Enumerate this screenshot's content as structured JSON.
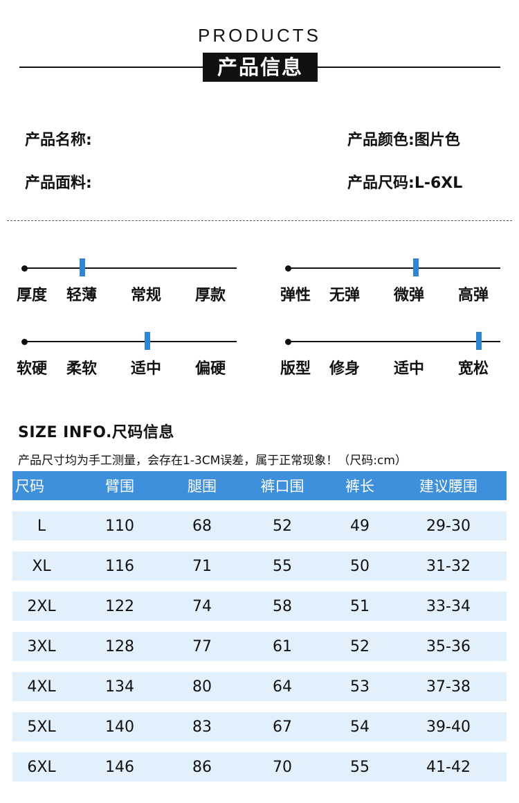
{
  "header": {
    "title_en": "PRODUCTS",
    "title_cn": "产品信息"
  },
  "info": {
    "name_label": "产品名称:",
    "name_value": "",
    "color_label": "产品颜色:",
    "color_value": "图片色",
    "fabric_label": "产品面料:",
    "fabric_value": "",
    "size_label": "产品尺码:",
    "size_value": "L-6XL"
  },
  "scales": [
    {
      "label": "厚度",
      "options": [
        "轻薄",
        "常规",
        "厚款"
      ],
      "level": 0.27
    },
    {
      "label": "弹性",
      "options": [
        "无弹",
        "微弹",
        "高弹"
      ],
      "level": 0.6
    },
    {
      "label": "软硬",
      "options": [
        "柔软",
        "适中",
        "偏硬"
      ],
      "level": 0.58
    },
    {
      "label": "版型",
      "options": [
        "修身",
        "适中",
        "宽松"
      ],
      "level": 0.9
    }
  ],
  "size_info": {
    "title": "SIZE INFO.尺码信息",
    "note": "产品尺寸均为手工测量，会存在1-3CM误差，属于正常现象！（尺码:cm）",
    "headers": [
      "尺码",
      "臂围",
      "腿围",
      "裤口围",
      "裤长",
      "建议腰围"
    ],
    "rows": [
      [
        "L",
        "110",
        "68",
        "52",
        "49",
        "29-30"
      ],
      [
        "XL",
        "116",
        "71",
        "55",
        "50",
        "31-32"
      ],
      [
        "2XL",
        "122",
        "74",
        "58",
        "51",
        "33-34"
      ],
      [
        "3XL",
        "128",
        "77",
        "61",
        "52",
        "35-36"
      ],
      [
        "4XL",
        "134",
        "80",
        "64",
        "53",
        "37-38"
      ],
      [
        "5XL",
        "140",
        "83",
        "67",
        "54",
        "39-40"
      ],
      [
        "6XL",
        "146",
        "86",
        "70",
        "55",
        "41-42"
      ]
    ]
  },
  "colors": {
    "accent": "#3e8fdc",
    "row_bg": "#e2f0fc",
    "marker": "#2f85d6"
  }
}
